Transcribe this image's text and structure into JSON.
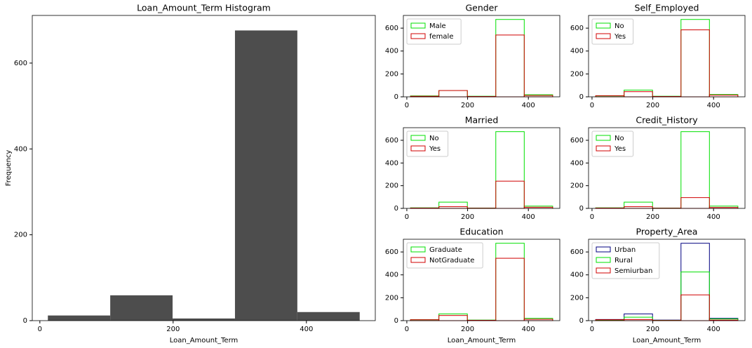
{
  "chart_data": [
    {
      "type": "histogram",
      "histtype": "bar",
      "title": "Loan_Amount_Term Histogram",
      "xlabel": "Loan_Amount_Term",
      "ylabel": "Frequency",
      "bins": [
        12,
        105.6,
        199.2,
        292.8,
        386.4,
        480
      ],
      "values": [
        12,
        59,
        5,
        676,
        20
      ],
      "color": "#4d4d4d",
      "xlim": [
        -11.4,
        503.4
      ],
      "ylim": [
        0,
        711
      ],
      "xticks": [
        0,
        200,
        400
      ],
      "yticks": [
        0,
        200,
        400,
        600
      ]
    },
    {
      "type": "histogram",
      "histtype": "step",
      "title": "Gender",
      "legend": "upper left",
      "bins": [
        12,
        105.6,
        199.2,
        292.8,
        386.4,
        480
      ],
      "series": [
        {
          "name": "Male",
          "color": "#00e000",
          "values": [
            8,
            55,
            5,
            676,
            18
          ]
        },
        {
          "name": "female",
          "color": "#d00000",
          "values": [
            5,
            55,
            3,
            540,
            12
          ]
        }
      ],
      "xlim": [
        -11.4,
        503.4
      ],
      "ylim": [
        0,
        711
      ],
      "xticks": [
        0,
        200,
        400
      ],
      "yticks": [
        0,
        200,
        400,
        600
      ]
    },
    {
      "type": "histogram",
      "histtype": "step",
      "title": "Self_Employed",
      "legend": "upper left",
      "bins": [
        12,
        105.6,
        199.2,
        292.8,
        386.4,
        480
      ],
      "series": [
        {
          "name": "No",
          "color": "#00e000",
          "values": [
            8,
            59,
            5,
            676,
            20
          ]
        },
        {
          "name": "Yes",
          "color": "#d00000",
          "values": [
            10,
            45,
            3,
            585,
            15
          ]
        }
      ],
      "xlim": [
        -11.4,
        503.4
      ],
      "ylim": [
        0,
        711
      ],
      "xticks": [
        0,
        200,
        400
      ],
      "yticks": [
        0,
        200,
        400,
        600
      ]
    },
    {
      "type": "histogram",
      "histtype": "step",
      "title": "Married",
      "legend": "upper left",
      "bins": [
        12,
        105.6,
        199.2,
        292.8,
        386.4,
        480
      ],
      "series": [
        {
          "name": "No",
          "color": "#00e000",
          "values": [
            5,
            55,
            3,
            676,
            20
          ]
        },
        {
          "name": "Yes",
          "color": "#d00000",
          "values": [
            3,
            15,
            2,
            240,
            10
          ]
        }
      ],
      "xlim": [
        -11.4,
        503.4
      ],
      "ylim": [
        0,
        711
      ],
      "xticks": [
        0,
        200,
        400
      ],
      "yticks": [
        0,
        200,
        400,
        600
      ]
    },
    {
      "type": "histogram",
      "histtype": "step",
      "title": "Credit_History",
      "legend": "upper left",
      "bins": [
        12,
        105.6,
        199.2,
        292.8,
        386.4,
        480
      ],
      "series": [
        {
          "name": "No",
          "color": "#00e000",
          "values": [
            5,
            55,
            3,
            676,
            20
          ]
        },
        {
          "name": "Yes",
          "color": "#d00000",
          "values": [
            3,
            15,
            2,
            95,
            8
          ]
        }
      ],
      "xlim": [
        -11.4,
        503.4
      ],
      "ylim": [
        0,
        711
      ],
      "xticks": [
        0,
        200,
        400
      ],
      "yticks": [
        0,
        200,
        400,
        600
      ]
    },
    {
      "type": "histogram",
      "histtype": "step",
      "title": "Education",
      "xlabel": "Loan_Amount_Term",
      "legend": "upper left",
      "bins": [
        12,
        105.6,
        199.2,
        292.8,
        386.4,
        480
      ],
      "series": [
        {
          "name": "Graduate",
          "color": "#00e000",
          "values": [
            8,
            59,
            5,
            676,
            20
          ]
        },
        {
          "name": "NotGraduate",
          "color": "#d00000",
          "values": [
            8,
            45,
            3,
            545,
            12
          ]
        }
      ],
      "xlim": [
        -11.4,
        503.4
      ],
      "ylim": [
        0,
        711
      ],
      "xticks": [
        0,
        200,
        400
      ],
      "yticks": [
        0,
        200,
        400,
        600
      ]
    },
    {
      "type": "histogram",
      "histtype": "step",
      "title": "Property_Area",
      "xlabel": "Loan_Amount_Term",
      "legend": "upper left",
      "bins": [
        12,
        105.6,
        199.2,
        292.8,
        386.4,
        480
      ],
      "series": [
        {
          "name": "Urban",
          "color": "#000080",
          "values": [
            10,
            59,
            5,
            676,
            20
          ]
        },
        {
          "name": "Rural",
          "color": "#00e000",
          "values": [
            5,
            30,
            3,
            425,
            15
          ]
        },
        {
          "name": "Semiurban",
          "color": "#d00000",
          "values": [
            8,
            10,
            2,
            225,
            5
          ]
        }
      ],
      "xlim": [
        -11.4,
        503.4
      ],
      "ylim": [
        0,
        711
      ],
      "xticks": [
        0,
        200,
        400
      ],
      "yticks": [
        0,
        200,
        400,
        600
      ]
    }
  ]
}
